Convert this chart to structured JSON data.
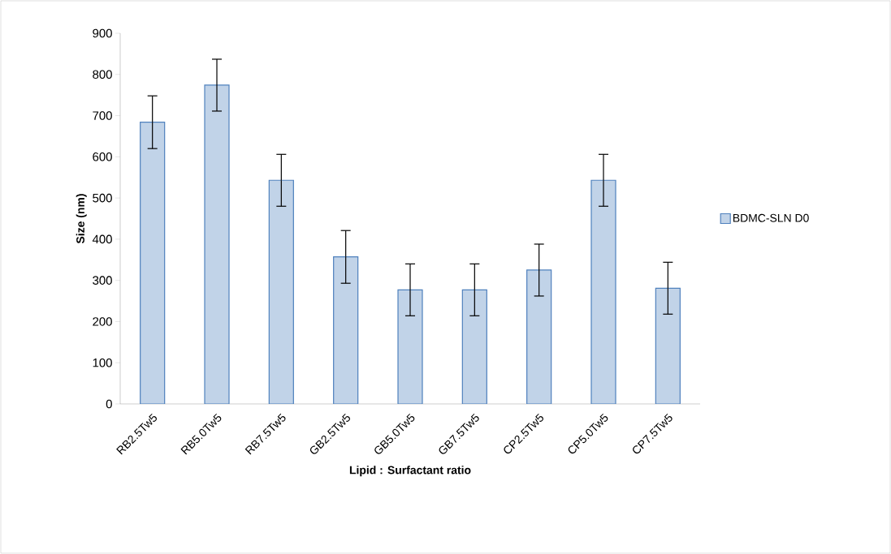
{
  "chart_data": {
    "type": "bar",
    "xlabel": "Lipid : Surfactant ratio",
    "ylabel": "Size (nm)",
    "categories": [
      "RB2.5Tw5",
      "RB5.0Tw5",
      "RB7.5Tw5",
      "GB2.5Tw5",
      "GB5.0Tw5",
      "GB7.5Tw5",
      "CP2.5Tw5",
      "CP5.0Tw5",
      "CP7.5Tw5"
    ],
    "series": [
      {
        "name": "BDMC-SLN D0",
        "color": "#4f81bd",
        "values": [
          684,
          774,
          543,
          357,
          277,
          277,
          325,
          543,
          281
        ],
        "errors": [
          64,
          63,
          63,
          64,
          63,
          63,
          63,
          63,
          63
        ]
      }
    ],
    "ylim": [
      0,
      900
    ],
    "yticks": [
      0,
      100,
      200,
      300,
      400,
      500,
      600,
      700,
      800,
      900
    ],
    "grid": false,
    "legend": "right"
  }
}
